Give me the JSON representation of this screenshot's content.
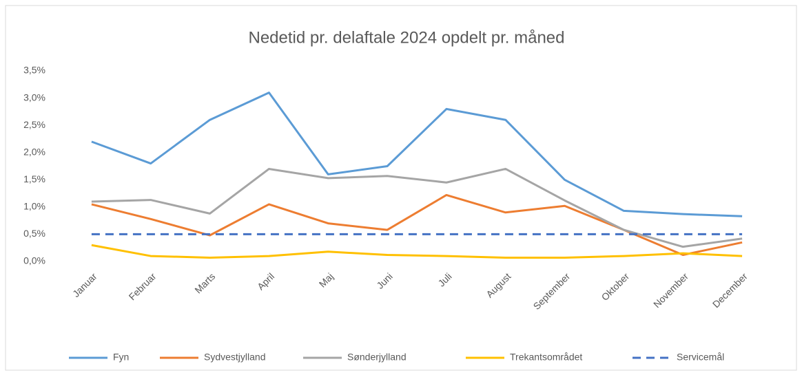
{
  "chart_data": {
    "type": "line",
    "title": "Nedetid pr. delaftale 2024 opdelt pr. måned",
    "categories": [
      "Januar",
      "Februar",
      "Marts",
      "April",
      "Maj",
      "Juni",
      "Juli",
      "August",
      "September",
      "Oktober",
      "November",
      "December"
    ],
    "series": [
      {
        "name": "Fyn",
        "color": "#5b9bd5",
        "values": [
          2.2,
          1.8,
          2.6,
          3.1,
          1.6,
          1.75,
          2.8,
          2.6,
          1.5,
          0.93,
          0.87,
          0.83
        ]
      },
      {
        "name": "Sydvestjylland",
        "color": "#ed7d31",
        "values": [
          1.05,
          0.78,
          0.48,
          1.05,
          0.7,
          0.58,
          1.22,
          0.9,
          1.02,
          0.58,
          0.12,
          0.35
        ]
      },
      {
        "name": "Sønderjylland",
        "color": "#a5a5a5",
        "values": [
          1.1,
          1.13,
          0.88,
          1.7,
          1.53,
          1.57,
          1.45,
          1.7,
          1.12,
          0.58,
          0.27,
          0.42
        ]
      },
      {
        "name": "Trekantsområdet",
        "color": "#ffc000",
        "values": [
          0.3,
          0.1,
          0.07,
          0.1,
          0.18,
          0.12,
          0.1,
          0.07,
          0.07,
          0.1,
          0.15,
          0.1
        ]
      },
      {
        "name": "Servicemål",
        "color": "#4472c4",
        "dashed": true,
        "values": [
          0.5,
          0.5,
          0.5,
          0.5,
          0.5,
          0.5,
          0.5,
          0.5,
          0.5,
          0.5,
          0.5,
          0.5
        ]
      }
    ],
    "ylim": [
      0,
      3.5
    ],
    "yticks": [
      {
        "value": 0,
        "label": "0,0%"
      },
      {
        "value": 0.5,
        "label": "0,5%"
      },
      {
        "value": 1,
        "label": "1,0%"
      },
      {
        "value": 1.5,
        "label": "1,5%"
      },
      {
        "value": 2,
        "label": "2,0%"
      },
      {
        "value": 2.5,
        "label": "2,5%"
      },
      {
        "value": 3,
        "label": "3,0%"
      },
      {
        "value": 3.5,
        "label": "3,5%"
      }
    ],
    "grid": false,
    "legend": "bottom"
  }
}
